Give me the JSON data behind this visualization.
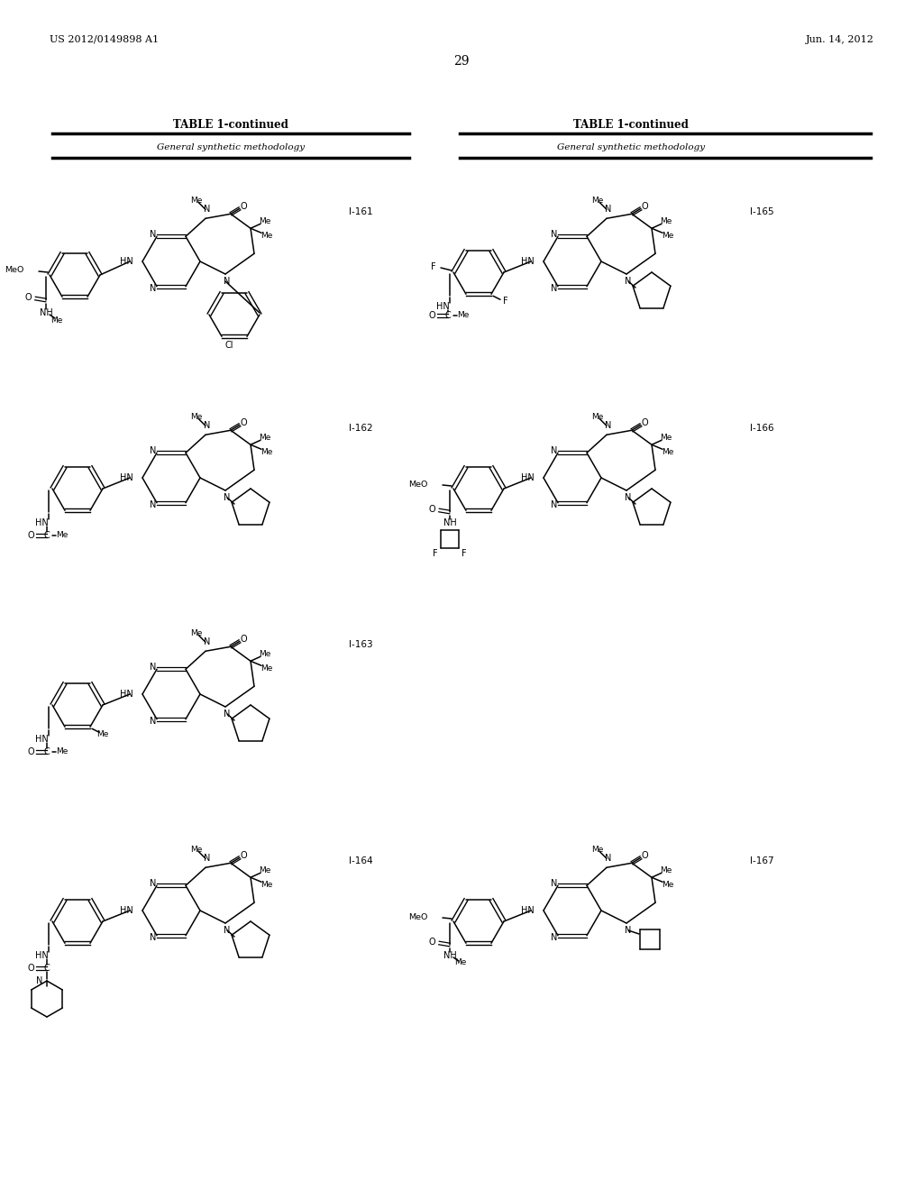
{
  "page_number": "29",
  "patent_number": "US 2012/0149898 A1",
  "patent_date": "Jun. 14, 2012",
  "table_title": "TABLE 1-continued",
  "table_subtitle": "General synthetic methodology",
  "background_color": "#ffffff",
  "text_color": "#000000"
}
